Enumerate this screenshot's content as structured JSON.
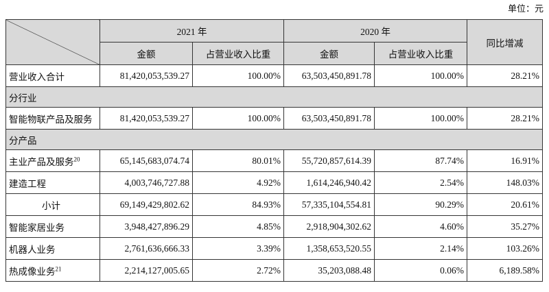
{
  "header": {
    "unit": "单位：元",
    "years": [
      "2021 年",
      "2020 年"
    ],
    "subheaders": [
      "金额",
      "占营业收入比重",
      "金额",
      "占营业收入比重"
    ],
    "change": "同比增减"
  },
  "rows": [
    {
      "cells": [
        "营业收入合计",
        "81,420,053,539.27",
        "100.00%",
        "63,503,450,891.78",
        "100.00%",
        "28.21%"
      ]
    },
    {
      "section": "分行业"
    },
    {
      "cells": [
        "智能物联产品及服务",
        "81,420,053,539.27",
        "100.00%",
        "63,503,450,891.78",
        "100.00%",
        "28.21%"
      ]
    },
    {
      "section": "分产品"
    },
    {
      "cells": [
        "主业产品及服务",
        "65,145,683,074.74",
        "80.01%",
        "55,720,857,614.39",
        "87.74%",
        "16.91%"
      ],
      "note": "20"
    },
    {
      "cells": [
        "建造工程",
        "4,003,746,727.88",
        "4.92%",
        "1,614,246,940.42",
        "2.54%",
        "148.03%"
      ]
    },
    {
      "cells": [
        "小计",
        "69,149,429,802.62",
        "84.93%",
        "57,335,104,554.81",
        "90.29%",
        "20.61%"
      ],
      "indent": true
    },
    {
      "cells": [
        "智能家居业务",
        "3,948,427,896.29",
        "4.85%",
        "2,918,904,302.62",
        "4.60%",
        "35.27%"
      ]
    },
    {
      "cells": [
        "机器人业务",
        "2,761,636,666.33",
        "3.39%",
        "1,358,653,520.55",
        "2.14%",
        "103.26%"
      ]
    },
    {
      "cells": [
        "热成像业务",
        "2,214,127,005.65",
        "2.72%",
        "35,203,088.48",
        "0.06%",
        "6,189.58%"
      ],
      "note": "21"
    }
  ]
}
